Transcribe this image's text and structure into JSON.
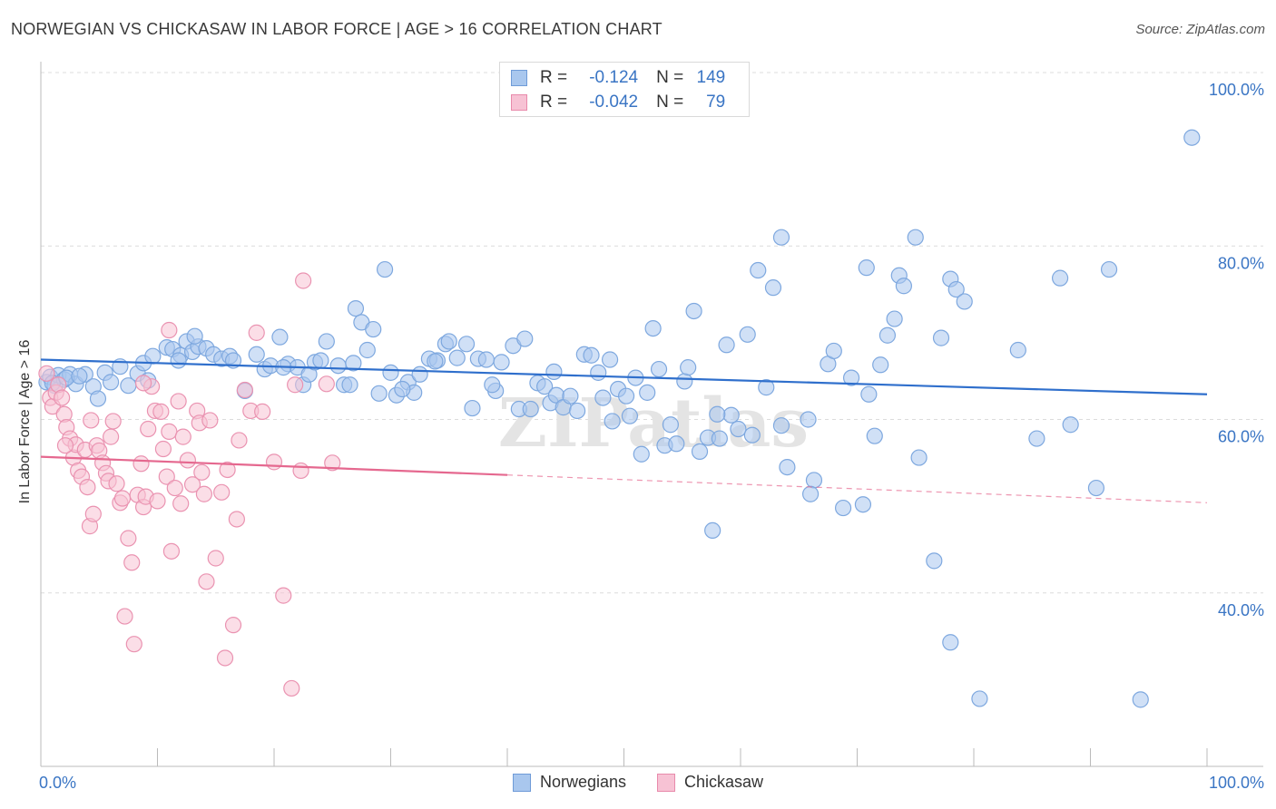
{
  "header": {
    "title": "NORWEGIAN VS CHICKASAW IN LABOR FORCE | AGE > 16 CORRELATION CHART",
    "source": "Source: ZipAtlas.com"
  },
  "legend_top": {
    "rows": [
      {
        "r_label": "R =",
        "r_value": "-0.124",
        "n_label": "N =",
        "n_value": "149",
        "color": "#a9c7ee",
        "border": "#6f9bd8"
      },
      {
        "r_label": "R =",
        "r_value": "-0.042",
        "n_label": "N =",
        "n_value": "79",
        "color": "#f7c2d4",
        "border": "#e88aab"
      }
    ]
  },
  "watermark": "ZIPatlas",
  "chart_data": {
    "type": "scatter",
    "title": "NORWEGIAN VS CHICKASAW IN LABOR FORCE | AGE > 16 CORRELATION CHART",
    "xlabel": "",
    "ylabel": "In Labor Force | Age > 16",
    "xlim": [
      0,
      100
    ],
    "ylim": [
      20,
      100
    ],
    "x_tick_labels": [
      "0.0%",
      "100.0%"
    ],
    "y_ticks": [
      40,
      60,
      80,
      100
    ],
    "y_tick_labels": [
      "40.0%",
      "60.0%",
      "80.0%",
      "100.0%"
    ],
    "grid": true,
    "legend_position": "bottom",
    "series": [
      {
        "name": "Norwegians",
        "color": "#7ea8df",
        "fill": "#a9c7ee",
        "trend": {
          "x": [
            0,
            100
          ],
          "y": [
            66.9,
            62.9
          ],
          "color": "#2f6fcc"
        },
        "points": [
          [
            0.5,
            64.3
          ],
          [
            0.8,
            64.9
          ],
          [
            1.2,
            63.9
          ],
          [
            1.5,
            65.1
          ],
          [
            2.0,
            64.6
          ],
          [
            2.5,
            65.2
          ],
          [
            3.0,
            64.1
          ],
          [
            3.8,
            65.2
          ],
          [
            4.5,
            63.8
          ],
          [
            4.9,
            62.4
          ],
          [
            5.5,
            65.4
          ],
          [
            6.0,
            64.3
          ],
          [
            6.8,
            66.1
          ],
          [
            7.5,
            63.9
          ],
          [
            8.3,
            65.3
          ],
          [
            8.8,
            66.5
          ],
          [
            9.6,
            67.3
          ],
          [
            10.8,
            68.3
          ],
          [
            11.3,
            68.1
          ],
          [
            12.0,
            67.4
          ],
          [
            12.5,
            69.0
          ],
          [
            13.0,
            67.8
          ],
          [
            13.5,
            68.4
          ],
          [
            14.2,
            68.2
          ],
          [
            14.8,
            67.5
          ],
          [
            15.5,
            67.0
          ],
          [
            16.2,
            67.3
          ],
          [
            17.5,
            63.3
          ],
          [
            18.5,
            67.5
          ],
          [
            19.2,
            65.8
          ],
          [
            19.7,
            66.2
          ],
          [
            20.5,
            69.5
          ],
          [
            21.2,
            66.4
          ],
          [
            22.0,
            66.0
          ],
          [
            22.5,
            64.0
          ],
          [
            23.0,
            65.2
          ],
          [
            23.5,
            66.6
          ],
          [
            24.0,
            66.8
          ],
          [
            24.5,
            69.0
          ],
          [
            25.5,
            66.2
          ],
          [
            26.0,
            64.0
          ],
          [
            26.5,
            64.0
          ],
          [
            27.0,
            72.8
          ],
          [
            27.5,
            71.2
          ],
          [
            28.0,
            68.0
          ],
          [
            28.5,
            70.4
          ],
          [
            29.0,
            63.0
          ],
          [
            30.0,
            65.4
          ],
          [
            29.5,
            77.3
          ],
          [
            30.5,
            62.8
          ],
          [
            31.5,
            64.3
          ],
          [
            32.0,
            63.1
          ],
          [
            32.5,
            65.2
          ],
          [
            33.3,
            67.0
          ],
          [
            34.0,
            66.8
          ],
          [
            34.7,
            68.7
          ],
          [
            35.0,
            69.0
          ],
          [
            35.7,
            67.1
          ],
          [
            36.5,
            68.7
          ],
          [
            37.0,
            61.3
          ],
          [
            37.5,
            67.0
          ],
          [
            38.2,
            66.9
          ],
          [
            39.0,
            63.3
          ],
          [
            39.5,
            66.6
          ],
          [
            40.5,
            68.5
          ],
          [
            41.0,
            61.2
          ],
          [
            41.5,
            69.3
          ],
          [
            42.0,
            61.2
          ],
          [
            42.6,
            64.2
          ],
          [
            43.2,
            63.8
          ],
          [
            43.7,
            61.9
          ],
          [
            44.2,
            62.8
          ],
          [
            44.8,
            61.4
          ],
          [
            45.4,
            62.7
          ],
          [
            46.0,
            61.0
          ],
          [
            46.6,
            67.5
          ],
          [
            47.2,
            67.4
          ],
          [
            47.8,
            65.4
          ],
          [
            48.2,
            62.5
          ],
          [
            48.8,
            66.9
          ],
          [
            49.5,
            63.5
          ],
          [
            50.2,
            62.7
          ],
          [
            50.5,
            60.4
          ],
          [
            51.0,
            64.8
          ],
          [
            51.5,
            56.0
          ],
          [
            52.5,
            70.5
          ],
          [
            53.0,
            65.8
          ],
          [
            53.5,
            57.0
          ],
          [
            54.0,
            59.4
          ],
          [
            54.5,
            57.2
          ],
          [
            55.2,
            64.4
          ],
          [
            55.5,
            66.0
          ],
          [
            56.0,
            72.5
          ],
          [
            56.5,
            56.3
          ],
          [
            57.2,
            57.9
          ],
          [
            57.6,
            47.2
          ],
          [
            58.2,
            57.8
          ],
          [
            58.8,
            68.6
          ],
          [
            59.2,
            60.5
          ],
          [
            59.8,
            58.9
          ],
          [
            60.6,
            69.8
          ],
          [
            61.5,
            77.2
          ],
          [
            62.2,
            63.7
          ],
          [
            62.8,
            75.2
          ],
          [
            63.5,
            59.3
          ],
          [
            63.5,
            81.0
          ],
          [
            64.0,
            54.5
          ],
          [
            65.8,
            60.0
          ],
          [
            66.3,
            53.0
          ],
          [
            66.0,
            51.4
          ],
          [
            67.5,
            66.4
          ],
          [
            68.0,
            67.9
          ],
          [
            68.8,
            49.8
          ],
          [
            69.5,
            64.8
          ],
          [
            70.5,
            50.2
          ],
          [
            70.8,
            77.5
          ],
          [
            71.5,
            58.1
          ],
          [
            72.0,
            66.3
          ],
          [
            72.6,
            69.7
          ],
          [
            73.6,
            76.6
          ],
          [
            73.2,
            71.6
          ],
          [
            74.0,
            75.4
          ],
          [
            75.0,
            81.0
          ],
          [
            75.3,
            55.6
          ],
          [
            76.6,
            43.7
          ],
          [
            77.2,
            69.4
          ],
          [
            78.0,
            76.2
          ],
          [
            78.5,
            75.0
          ],
          [
            78.0,
            34.3
          ],
          [
            79.2,
            73.6
          ],
          [
            80.5,
            27.8
          ],
          [
            83.8,
            68.0
          ],
          [
            85.4,
            57.8
          ],
          [
            87.4,
            76.3
          ],
          [
            88.3,
            59.4
          ],
          [
            90.5,
            52.1
          ],
          [
            91.6,
            77.3
          ],
          [
            94.3,
            27.7
          ],
          [
            98.7,
            92.5
          ],
          [
            1.0,
            64.2
          ],
          [
            2.2,
            64.8
          ],
          [
            3.3,
            65.0
          ],
          [
            9.2,
            64.5
          ],
          [
            11.8,
            66.8
          ],
          [
            13.2,
            69.6
          ],
          [
            16.5,
            66.8
          ],
          [
            20.8,
            66.0
          ],
          [
            26.8,
            66.5
          ],
          [
            31.0,
            63.5
          ],
          [
            33.8,
            66.7
          ],
          [
            38.7,
            64.0
          ],
          [
            44.0,
            65.5
          ],
          [
            49.0,
            59.8
          ],
          [
            58.0,
            60.6
          ],
          [
            61.0,
            58.2
          ],
          [
            71.0,
            62.9
          ],
          [
            52.0,
            63.1
          ]
        ]
      },
      {
        "name": "Chickasaw",
        "color": "#ea93b1",
        "fill": "#f7c2d4",
        "trend": {
          "x": [
            0,
            40
          ],
          "y": [
            55.7,
            53.6
          ],
          "color": "#e5688f",
          "dashed_to": [
            100,
            50.4
          ]
        },
        "points": [
          [
            0.5,
            65.3
          ],
          [
            0.8,
            62.5
          ],
          [
            1.0,
            61.5
          ],
          [
            1.3,
            63.1
          ],
          [
            1.5,
            64.0
          ],
          [
            1.8,
            62.5
          ],
          [
            2.0,
            60.6
          ],
          [
            2.2,
            59.1
          ],
          [
            2.5,
            57.8
          ],
          [
            2.8,
            55.6
          ],
          [
            3.0,
            57.1
          ],
          [
            3.2,
            54.1
          ],
          [
            3.5,
            53.4
          ],
          [
            3.8,
            56.5
          ],
          [
            4.0,
            52.2
          ],
          [
            4.2,
            47.7
          ],
          [
            4.5,
            49.1
          ],
          [
            4.8,
            57.0
          ],
          [
            5.0,
            56.4
          ],
          [
            5.3,
            55.0
          ],
          [
            5.6,
            53.8
          ],
          [
            5.8,
            52.9
          ],
          [
            6.0,
            58.0
          ],
          [
            6.2,
            59.8
          ],
          [
            6.5,
            52.6
          ],
          [
            6.8,
            50.4
          ],
          [
            7.0,
            50.9
          ],
          [
            7.2,
            37.3
          ],
          [
            7.5,
            46.3
          ],
          [
            7.8,
            43.5
          ],
          [
            8.0,
            34.1
          ],
          [
            8.3,
            51.3
          ],
          [
            8.6,
            54.9
          ],
          [
            8.8,
            49.9
          ],
          [
            9.0,
            51.1
          ],
          [
            9.2,
            58.9
          ],
          [
            9.5,
            63.8
          ],
          [
            9.8,
            61.0
          ],
          [
            10.0,
            50.6
          ],
          [
            10.3,
            60.9
          ],
          [
            10.5,
            56.6
          ],
          [
            10.8,
            53.4
          ],
          [
            11.0,
            58.6
          ],
          [
            11.2,
            44.8
          ],
          [
            11.5,
            52.1
          ],
          [
            11.8,
            62.1
          ],
          [
            12.0,
            50.3
          ],
          [
            12.2,
            58.0
          ],
          [
            12.6,
            55.3
          ],
          [
            13.0,
            52.5
          ],
          [
            13.4,
            61.0
          ],
          [
            13.6,
            59.6
          ],
          [
            13.8,
            53.9
          ],
          [
            14.0,
            51.4
          ],
          [
            14.2,
            41.3
          ],
          [
            14.5,
            59.9
          ],
          [
            15.0,
            44.0
          ],
          [
            15.5,
            51.6
          ],
          [
            15.8,
            32.5
          ],
          [
            16.0,
            54.2
          ],
          [
            16.5,
            36.3
          ],
          [
            16.8,
            48.5
          ],
          [
            17.0,
            57.6
          ],
          [
            17.5,
            63.4
          ],
          [
            18.0,
            61.0
          ],
          [
            18.5,
            70.0
          ],
          [
            19.0,
            60.9
          ],
          [
            20.0,
            55.1
          ],
          [
            20.8,
            39.7
          ],
          [
            21.5,
            29.0
          ],
          [
            21.8,
            64.0
          ],
          [
            22.3,
            54.1
          ],
          [
            22.5,
            76.0
          ],
          [
            24.5,
            64.1
          ],
          [
            25.0,
            55.0
          ],
          [
            11.0,
            70.3
          ],
          [
            8.8,
            64.2
          ],
          [
            4.3,
            59.9
          ],
          [
            2.1,
            57.0
          ]
        ]
      }
    ]
  }
}
